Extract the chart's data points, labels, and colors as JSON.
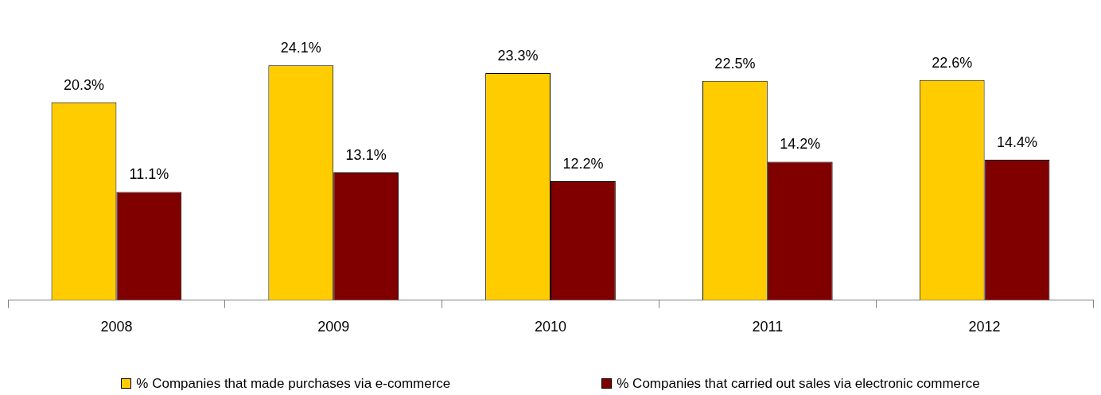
{
  "chart_data": {
    "type": "bar",
    "categories": [
      "2008",
      "2009",
      "2010",
      "2011",
      "2012"
    ],
    "series": [
      {
        "name": "% Companies that made purchases via e-commerce",
        "color": "#ffcc00",
        "values": [
          20.3,
          24.1,
          23.3,
          22.5,
          22.6
        ],
        "value_labels": [
          "20.3%",
          "24.1%",
          "23.3%",
          "22.5%",
          "22.6%"
        ]
      },
      {
        "name": "% Companies that carried out sales via electronic commerce",
        "color": "#800000",
        "values": [
          11.1,
          13.1,
          12.2,
          14.2,
          14.4
        ],
        "value_labels": [
          "11.1%",
          "13.1%",
          "12.2%",
          "14.2%",
          "14.4%"
        ]
      }
    ],
    "tick_labels": "x",
    "grid": false,
    "legend": "bottom"
  }
}
